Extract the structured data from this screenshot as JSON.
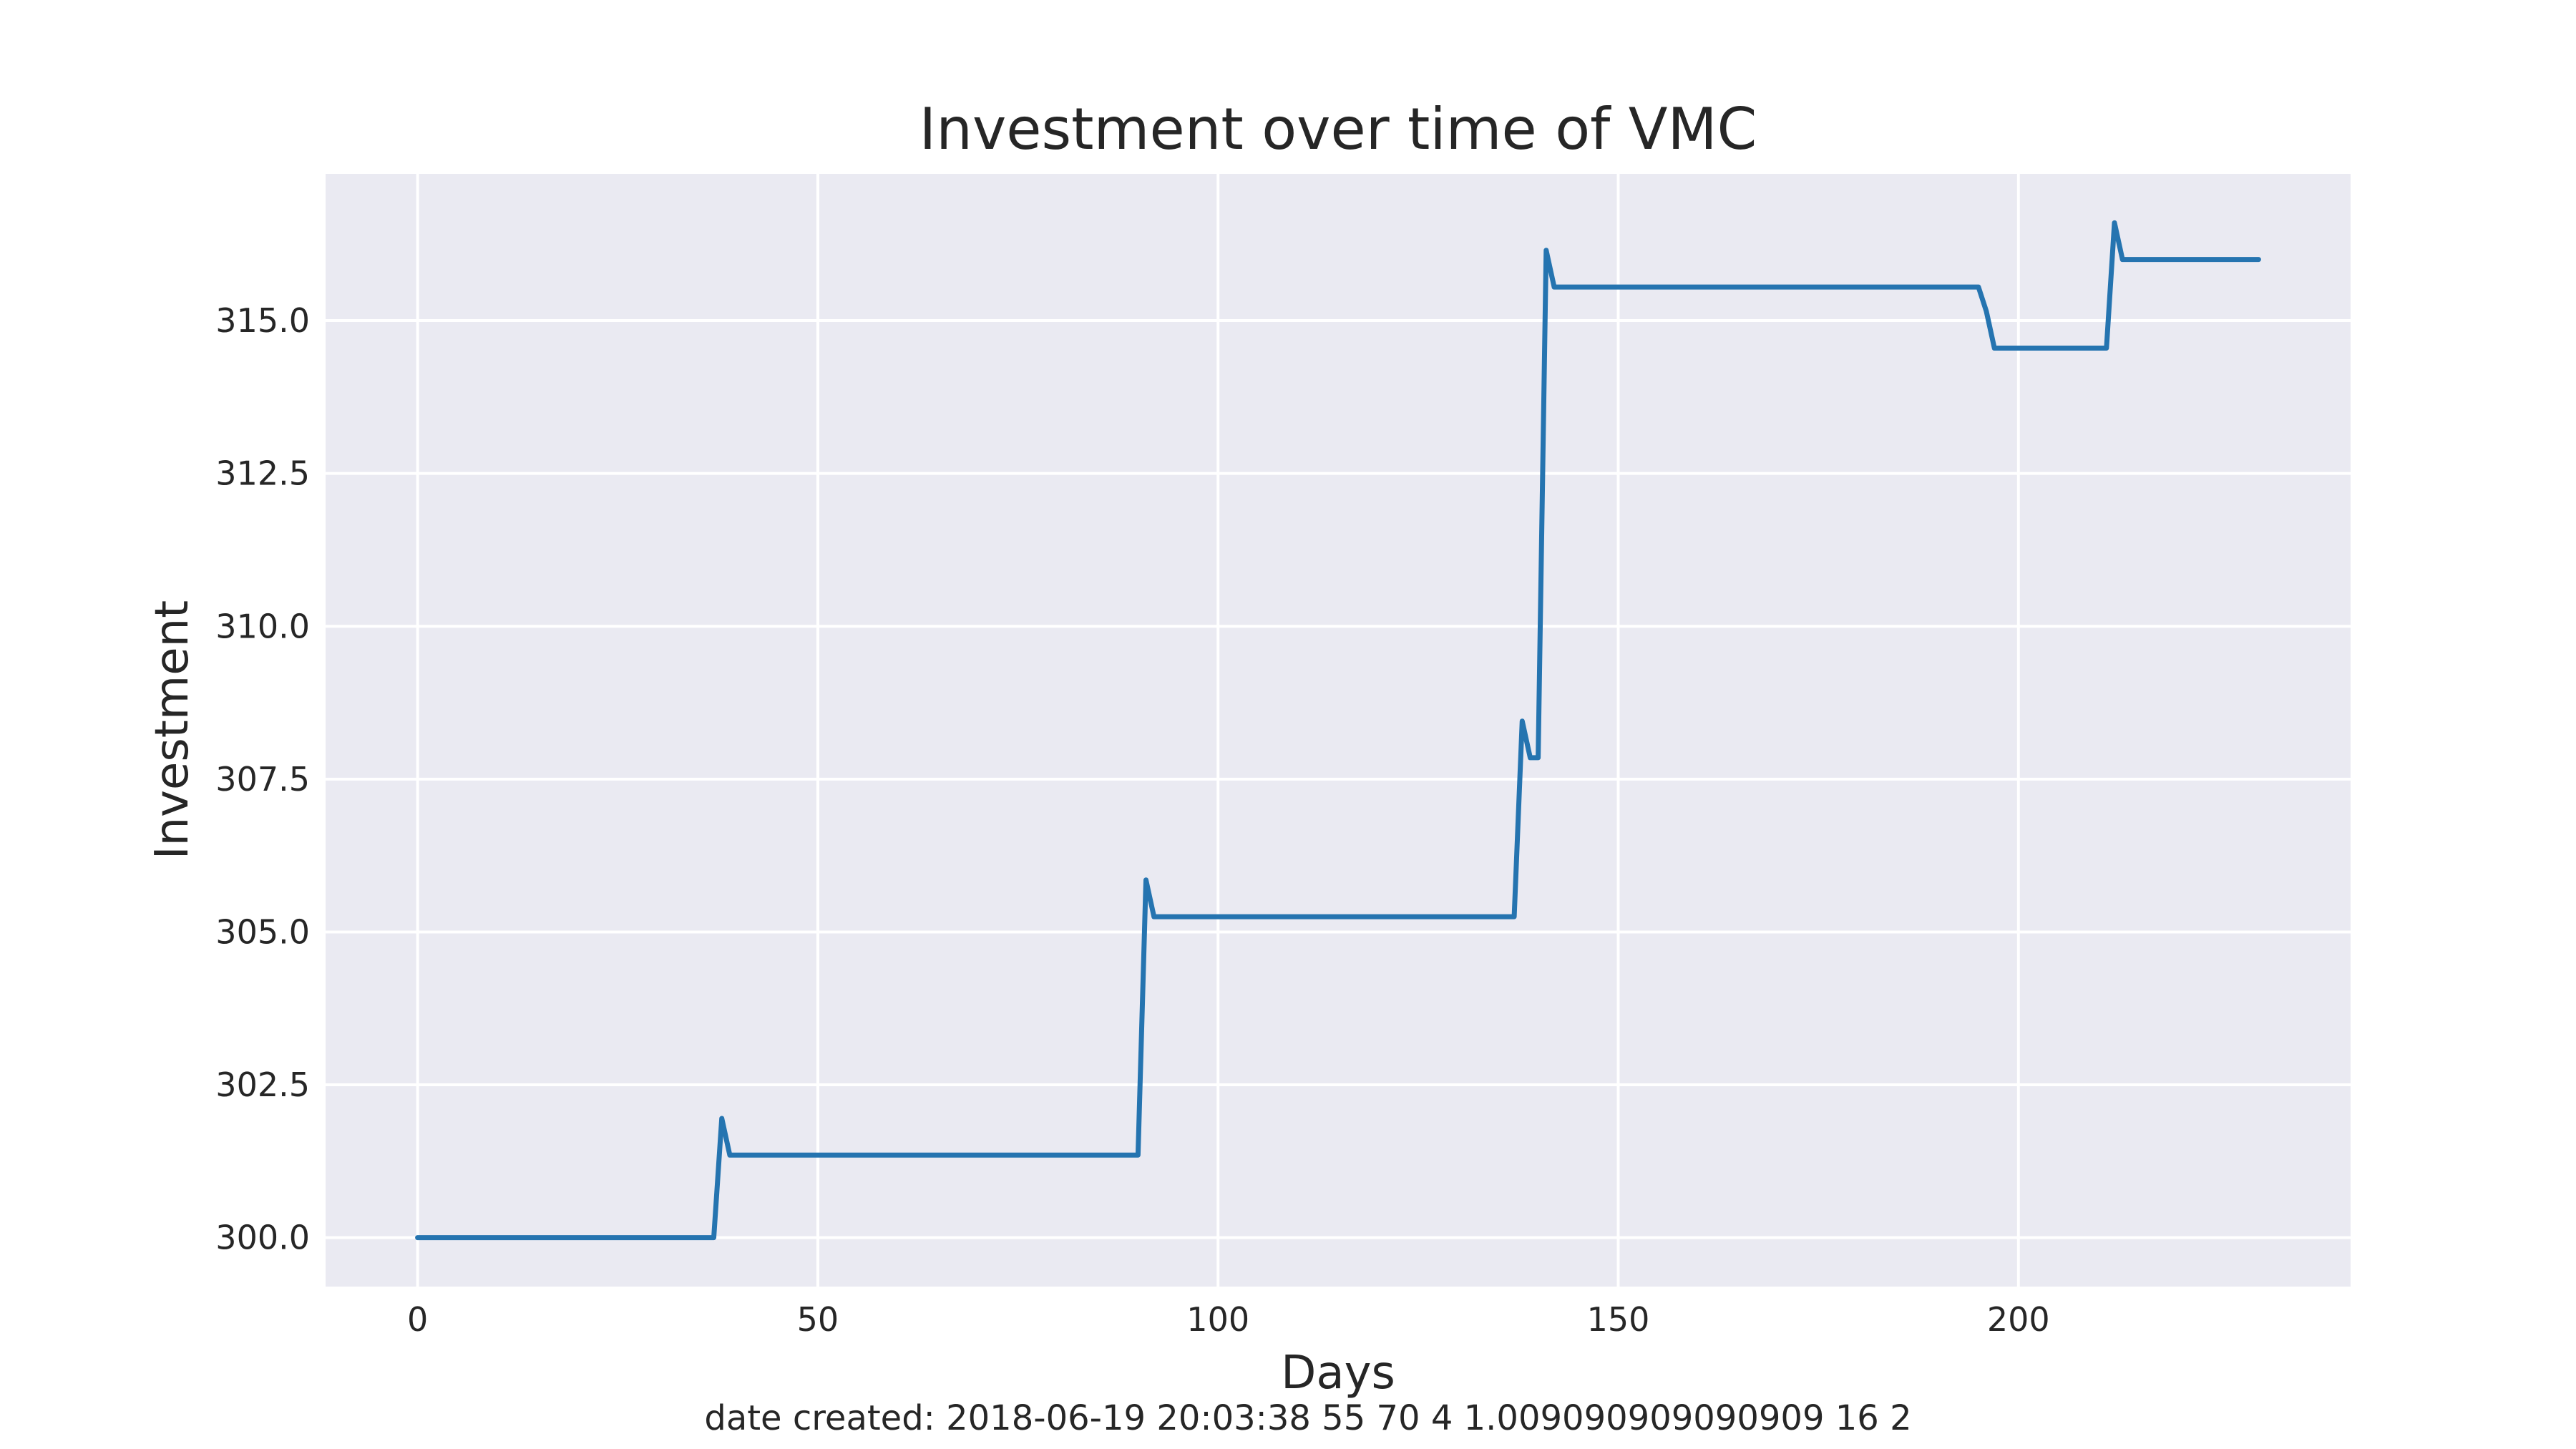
{
  "chart_data": {
    "type": "line",
    "title": "Investment over time of VMC",
    "xlabel": "Days",
    "ylabel": "Investment",
    "xlim": [
      -11.5,
      241.5
    ],
    "ylim": [
      299.2,
      317.4
    ],
    "xticks": [
      0,
      50,
      100,
      150,
      200
    ],
    "yticks": [
      300.0,
      302.5,
      305.0,
      307.5,
      310.0,
      312.5,
      315.0
    ],
    "xtick_labels": [
      "0",
      "50",
      "100",
      "150",
      "200"
    ],
    "ytick_labels": [
      "300.0",
      "302.5",
      "305.0",
      "307.5",
      "310.0",
      "312.5",
      "315.0"
    ],
    "grid": true,
    "series": [
      {
        "color": "#2574b0",
        "x": [
          0,
          37,
          38,
          39,
          90,
          91,
          92,
          137,
          138,
          139,
          140,
          141,
          142,
          195,
          196,
          197,
          211,
          212,
          213,
          230
        ],
        "y": [
          300.0,
          300.0,
          301.95,
          301.35,
          301.35,
          305.85,
          305.25,
          305.25,
          308.45,
          307.85,
          307.85,
          316.15,
          315.55,
          315.55,
          315.15,
          314.55,
          314.55,
          316.6,
          316.0,
          316.0
        ]
      }
    ]
  },
  "footer": {
    "text": "date created: 2018-06-19 20:03:38 55 70 4 1.009090909090909 16 2"
  },
  "colors": {
    "plot_background": "#eaeaf2",
    "grid": "#ffffff",
    "text": "#262626"
  }
}
